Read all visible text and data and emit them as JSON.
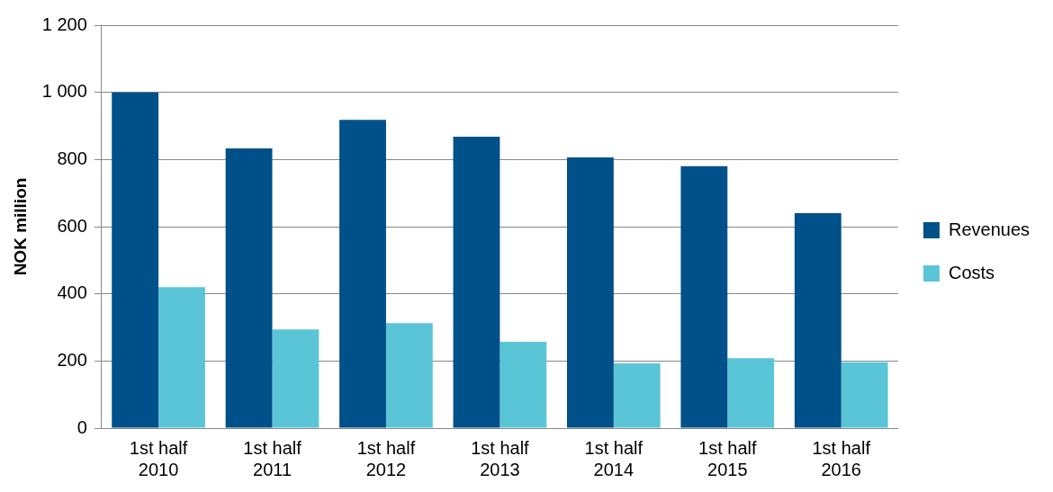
{
  "chart_data": {
    "type": "bar",
    "ylabel": "NOK million",
    "categories": [
      "1st half 2010",
      "1st half 2011",
      "1st half 2012",
      "1st half 2013",
      "1st half 2014",
      "1st half 2015",
      "1st half 2016"
    ],
    "series": [
      {
        "name": "Revenues",
        "color": "#00508a",
        "values": [
          1000,
          833,
          918,
          868,
          806,
          780,
          640
        ]
      },
      {
        "name": "Costs",
        "color": "#5bc5d8",
        "values": [
          420,
          294,
          313,
          257,
          193,
          208,
          196
        ]
      }
    ],
    "ylim": [
      0,
      1200
    ],
    "yticks": [
      0,
      200,
      400,
      600,
      800,
      {
        "value": 1000,
        "label": "1 000"
      },
      {
        "value": 1200,
        "label": "1 200"
      }
    ],
    "grid": "y",
    "legend": "right"
  }
}
